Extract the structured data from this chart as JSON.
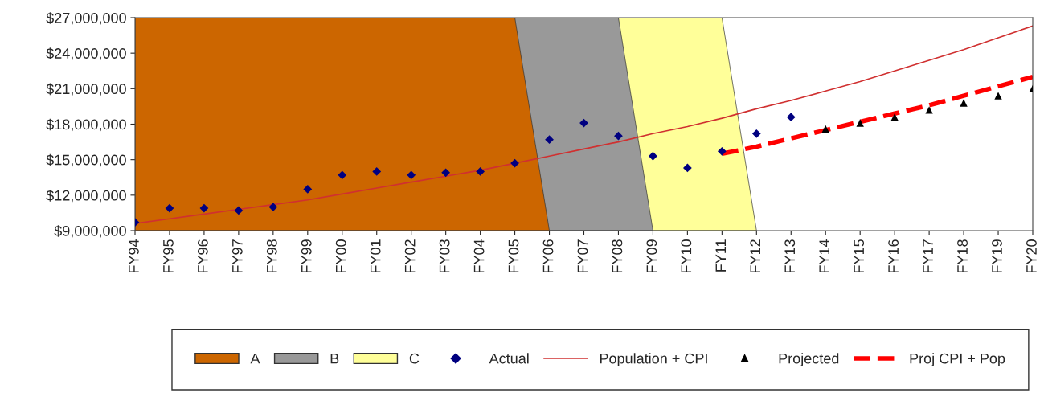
{
  "chart_data": {
    "type": "line",
    "categories": [
      "FY94",
      "FY95",
      "FY96",
      "FY97",
      "FY98",
      "FY99",
      "FY00",
      "FY01",
      "FY02",
      "FY03",
      "FY04",
      "FY05",
      "FY06",
      "FY07",
      "FY08",
      "FY09",
      "FY10",
      "FY11",
      "FY12",
      "FY13",
      "FY14",
      "FY15",
      "FY16",
      "FY17",
      "FY18",
      "FY19",
      "FY20"
    ],
    "ylim": [
      9000000,
      27000000
    ],
    "yticks": [
      {
        "value": 9000000,
        "label": "$9,000,000"
      },
      {
        "value": 12000000,
        "label": "$12,000,000"
      },
      {
        "value": 15000000,
        "label": "$15,000,000"
      },
      {
        "value": 18000000,
        "label": "$18,000,000"
      },
      {
        "value": 21000000,
        "label": "$21,000,000"
      },
      {
        "value": 24000000,
        "label": "$24,000,000"
      },
      {
        "value": 27000000,
        "label": "$27,000,000"
      }
    ],
    "grid": false,
    "legend": "bottom",
    "series": [
      {
        "name": "A",
        "type": "area",
        "color": "#cc6600",
        "values": [
          27000000,
          27000000,
          27000000,
          27000000,
          27000000,
          27000000,
          27000000,
          27000000,
          27000000,
          27000000,
          27000000,
          27000000,
          9000000,
          null,
          null,
          null,
          null,
          null,
          null,
          null,
          null,
          null,
          null,
          null,
          null,
          null,
          null
        ]
      },
      {
        "name": "B",
        "type": "area",
        "color": "#999999",
        "values": [
          null,
          null,
          null,
          null,
          null,
          null,
          null,
          null,
          null,
          null,
          null,
          27000000,
          27000000,
          27000000,
          27000000,
          9000000,
          null,
          null,
          null,
          null,
          null,
          null,
          null,
          null,
          null,
          null,
          null
        ]
      },
      {
        "name": "C",
        "type": "area",
        "color": "#ffff99",
        "values": [
          null,
          null,
          null,
          null,
          null,
          null,
          null,
          null,
          null,
          null,
          null,
          null,
          null,
          null,
          27000000,
          27000000,
          27000000,
          27000000,
          9000000,
          null,
          null,
          null,
          null,
          null,
          null,
          null,
          null
        ]
      },
      {
        "name": "Actual",
        "type": "scatter",
        "marker": "diamond",
        "color": "#000080",
        "values": [
          9700000,
          10900000,
          10900000,
          10700000,
          11000000,
          12500000,
          13700000,
          14000000,
          13700000,
          13900000,
          14000000,
          14700000,
          16700000,
          18100000,
          17000000,
          15300000,
          14300000,
          15700000,
          17200000,
          18600000,
          null,
          null,
          null,
          null,
          null,
          null,
          null
        ]
      },
      {
        "name": "Population + CPI",
        "line_style": "solid",
        "color": "#d03030",
        "values": [
          9600000,
          10000000,
          10400000,
          10800000,
          11200000,
          11600000,
          12100000,
          12600000,
          13100000,
          13600000,
          14100000,
          14700000,
          15300000,
          15900000,
          16500000,
          17200000,
          17800000,
          18500000,
          19300000,
          20000000,
          20800000,
          21600000,
          22500000,
          23400000,
          24300000,
          25300000,
          26300000
        ]
      },
      {
        "name": "Projected",
        "type": "scatter",
        "marker": "triangle",
        "color": "#000000",
        "values": [
          null,
          null,
          null,
          null,
          null,
          null,
          null,
          null,
          null,
          null,
          null,
          null,
          null,
          null,
          null,
          null,
          null,
          null,
          null,
          null,
          17600000,
          18100000,
          18600000,
          19200000,
          19800000,
          20400000,
          21000000
        ]
      },
      {
        "name": "Proj CPI + Pop",
        "line_style": "dashed",
        "color": "#ff0000",
        "values": [
          null,
          null,
          null,
          null,
          null,
          null,
          null,
          null,
          null,
          null,
          null,
          null,
          null,
          null,
          null,
          null,
          null,
          15500000,
          16100000,
          16800000,
          17500000,
          18200000,
          18900000,
          19600000,
          20400000,
          21200000,
          22000000
        ]
      }
    ]
  }
}
